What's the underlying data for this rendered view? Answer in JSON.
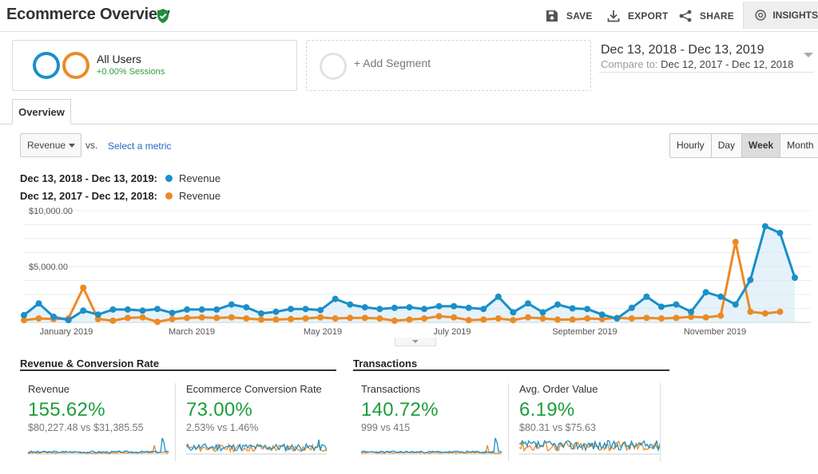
{
  "header": {
    "title": "Ecommerce Overview",
    "save_label": "SAVE",
    "export_label": "EXPORT",
    "share_label": "SHARE",
    "insights_label": "INSIGHTS"
  },
  "segments": {
    "all_users": {
      "name": "All Users",
      "sub": "+0.00% Sessions"
    },
    "add_segment": "+ Add Segment"
  },
  "date_range": {
    "main": "Dec 13, 2018 - Dec 13, 2019",
    "compare_label": "Compare to:",
    "compare_range": "Dec 12, 2017 - Dec 12, 2018"
  },
  "tabs": {
    "overview": "Overview"
  },
  "controls": {
    "metric": "Revenue",
    "vs": "vs.",
    "select_metric": "Select a metric",
    "granularity": [
      "Hourly",
      "Day",
      "Week",
      "Month"
    ],
    "active_granularity": "Week"
  },
  "legend": [
    {
      "range": "Dec 13, 2018 - Dec 13, 2019:",
      "label": "Revenue",
      "color": "#1a8fc9"
    },
    {
      "range": "Dec 12, 2017 - Dec 12, 2018:",
      "label": "Revenue",
      "color": "#ec8a23"
    }
  ],
  "chart_data": {
    "type": "line",
    "ytick_labels": [
      "$10,000.00",
      "$5,000.00"
    ],
    "yticks": [
      10000,
      5000
    ],
    "ylim": [
      0,
      10000
    ],
    "x_labels": [
      "January 2019",
      "March 2019",
      "May 2019",
      "July 2019",
      "September 2019",
      "November 2019"
    ],
    "grid": true,
    "area_fill_series": 0,
    "series": [
      {
        "label": "Revenue",
        "color": "#1a8fc9",
        "values": [
          650,
          1700,
          500,
          200,
          1050,
          700,
          1150,
          1150,
          1050,
          1200,
          850,
          1150,
          1150,
          1150,
          1600,
          1350,
          800,
          950,
          1200,
          1200,
          1100,
          2100,
          1600,
          1350,
          1200,
          1300,
          1350,
          1200,
          1450,
          1450,
          1300,
          1200,
          2300,
          900,
          1700,
          900,
          1600,
          1250,
          1200,
          700,
          350,
          1300,
          2300,
          1400,
          1600,
          950,
          2700,
          2300,
          1600,
          3800,
          8600,
          8000,
          4000
        ]
      },
      {
        "label": "Revenue",
        "color": "#ec8a23",
        "values": [
          200,
          350,
          300,
          350,
          3100,
          300,
          150,
          400,
          450,
          50,
          300,
          400,
          450,
          400,
          450,
          350,
          250,
          250,
          300,
          350,
          450,
          350,
          400,
          400,
          350,
          150,
          250,
          350,
          550,
          450,
          200,
          250,
          350,
          200,
          450,
          350,
          250,
          250,
          350,
          300,
          400,
          350,
          400,
          350,
          400,
          500,
          450,
          600,
          7200,
          950,
          800,
          950
        ]
      }
    ]
  },
  "sections": [
    {
      "title": "Revenue & Conversion Rate"
    },
    {
      "title": "Transactions"
    }
  ],
  "cards": [
    {
      "name": "Revenue",
      "pct": "155.62%",
      "cmp": "$80,227.48 vs $31,385.55"
    },
    {
      "name": "Ecommerce Conversion Rate",
      "pct": "73.00%",
      "cmp": "2.53% vs 1.46%"
    },
    {
      "name": "Transactions",
      "pct": "140.72%",
      "cmp": "999 vs 415"
    },
    {
      "name": "Avg. Order Value",
      "pct": "6.19%",
      "cmp": "$80.31 vs $75.63"
    }
  ],
  "colors": {
    "current": "#1a8fc9",
    "previous": "#ec8a23",
    "positive": "#1a9e3a",
    "link": "#2269c5"
  }
}
